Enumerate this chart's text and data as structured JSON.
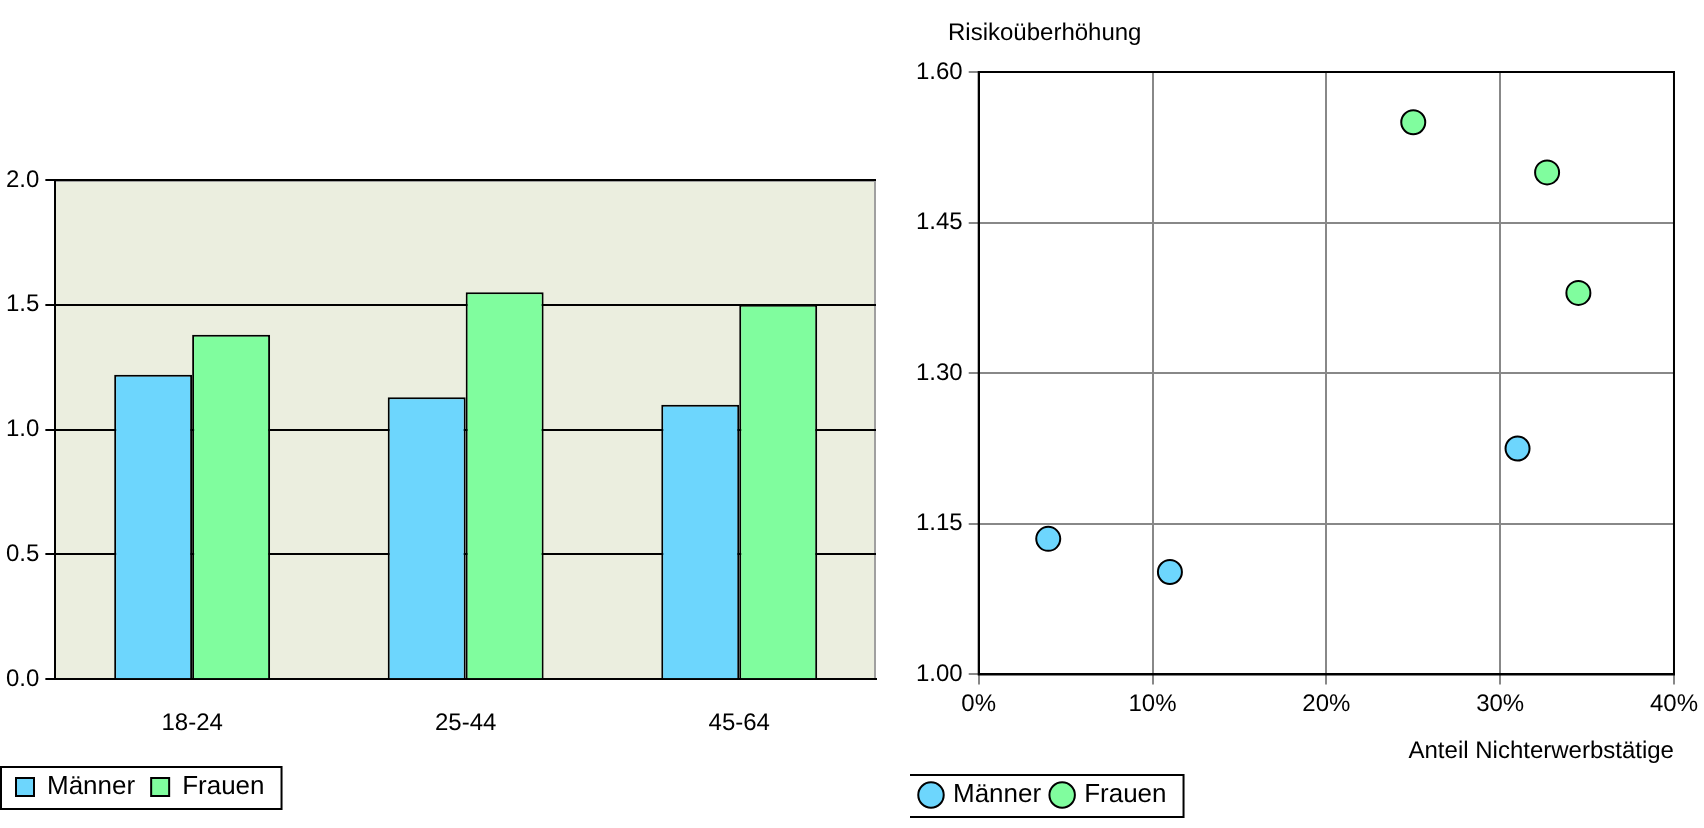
{
  "chart_data": [
    {
      "type": "bar",
      "categories": [
        "18-24",
        "25-44",
        "45-64"
      ],
      "series": [
        {
          "name": "Männer",
          "color": "#6dd6fd",
          "values": [
            1.22,
            1.13,
            1.1
          ]
        },
        {
          "name": "Frauen",
          "color": "#80fd9e",
          "values": [
            1.38,
            1.55,
            1.5
          ]
        }
      ],
      "ylim": [
        0,
        2
      ],
      "yticks": [
        {
          "value": 0,
          "label": "0.0"
        },
        {
          "value": 0.5,
          "label": "0.5"
        },
        {
          "value": 1,
          "label": "1.0"
        },
        {
          "value": 1.5,
          "label": "1.5"
        },
        {
          "value": 2,
          "label": "2.0"
        }
      ],
      "grid": "y",
      "legend": "bottom left"
    },
    {
      "type": "scatter",
      "xlabel": "Anteil Nichterwerbstätige",
      "ylabel": "Risikoüberhöhung",
      "series": [
        {
          "name": "Männer",
          "color": "#6dd6fd",
          "x": [
            4,
            11,
            31
          ],
          "values": [
            1.135,
            1.102,
            1.225
          ]
        },
        {
          "name": "Frauen",
          "color": "#80fd9e",
          "x": [
            25,
            32.7,
            34.5
          ],
          "values": [
            1.55,
            1.5,
            1.38
          ]
        }
      ],
      "xlim": [
        0,
        40
      ],
      "xticks": [
        {
          "value": 0,
          "label": "0%"
        },
        {
          "value": 10,
          "label": "10%"
        },
        {
          "value": 20,
          "label": "20%"
        },
        {
          "value": 30,
          "label": "30%"
        },
        {
          "value": 40,
          "label": "40%"
        }
      ],
      "ylim": [
        1,
        1.6
      ],
      "yticks": [
        {
          "value": 1,
          "label": "1.00"
        },
        {
          "value": 1.15,
          "label": "1.15"
        },
        {
          "value": 1.3,
          "label": "1.30"
        },
        {
          "value": 1.45,
          "label": "1.45"
        },
        {
          "value": 1.6,
          "label": "1.60"
        }
      ],
      "grid": true,
      "legend": "bottom left",
      "marker": "circle"
    }
  ]
}
